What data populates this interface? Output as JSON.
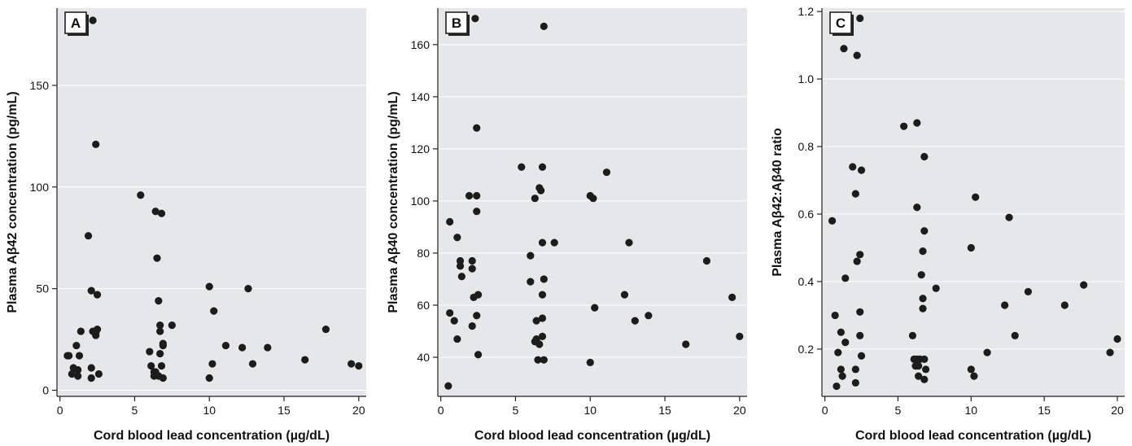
{
  "colors": {
    "background": "#ffffff",
    "plot_background": "#e6e7e8",
    "gridline": "#ffffff",
    "point": "#1c1c1c"
  },
  "chart_data": [
    {
      "type": "scatter",
      "panel_label": "A",
      "xlabel": "Cord blood lead concentration (µg/dL)",
      "ylabel": "Plasma Aβ42 concentration (pg/mL)",
      "xlim": [
        -0.2,
        20.5
      ],
      "ylim": [
        -3,
        188
      ],
      "xticks": [
        0,
        5,
        10,
        15,
        20
      ],
      "yticks": [
        0,
        50,
        100,
        150
      ],
      "grid": true,
      "points": [
        [
          1.2,
          184
        ],
        [
          2.2,
          182
        ],
        [
          2.4,
          121
        ],
        [
          5.4,
          96
        ],
        [
          6.4,
          88
        ],
        [
          6.8,
          87
        ],
        [
          1.9,
          76
        ],
        [
          6.5,
          65
        ],
        [
          10.0,
          51
        ],
        [
          12.6,
          50
        ],
        [
          2.1,
          49
        ],
        [
          2.5,
          47
        ],
        [
          6.6,
          44
        ],
        [
          10.3,
          39
        ],
        [
          7.5,
          32
        ],
        [
          6.7,
          32
        ],
        [
          2.5,
          30
        ],
        [
          2.2,
          29
        ],
        [
          1.4,
          29
        ],
        [
          2.4,
          28
        ],
        [
          6.7,
          29
        ],
        [
          17.8,
          30
        ],
        [
          2.4,
          27
        ],
        [
          6.9,
          23
        ],
        [
          6.9,
          22
        ],
        [
          11.1,
          22
        ],
        [
          1.1,
          22
        ],
        [
          12.2,
          21
        ],
        [
          13.9,
          21
        ],
        [
          6.0,
          19
        ],
        [
          1.3,
          17
        ],
        [
          0.6,
          17
        ],
        [
          0.5,
          17
        ],
        [
          6.7,
          18
        ],
        [
          16.4,
          15
        ],
        [
          12.9,
          13
        ],
        [
          10.2,
          13
        ],
        [
          19.5,
          13
        ],
        [
          20.0,
          12
        ],
        [
          6.1,
          12
        ],
        [
          6.8,
          12
        ],
        [
          2.1,
          11
        ],
        [
          0.9,
          11
        ],
        [
          1.2,
          10
        ],
        [
          6.3,
          9
        ],
        [
          6.4,
          9
        ],
        [
          2.6,
          8
        ],
        [
          0.8,
          8
        ],
        [
          1.2,
          7
        ],
        [
          6.3,
          7
        ],
        [
          6.6,
          7
        ],
        [
          2.1,
          6
        ],
        [
          6.9,
          6
        ],
        [
          10.0,
          6
        ]
      ]
    },
    {
      "type": "scatter",
      "panel_label": "B",
      "xlabel": "Cord blood lead concentration (µg/dL)",
      "ylabel": "Plasma Aβ40 concentration (pg/mL)",
      "xlim": [
        -0.2,
        20.5
      ],
      "ylim": [
        25,
        174
      ],
      "xticks": [
        0,
        5,
        10,
        15,
        20
      ],
      "yticks": [
        40,
        60,
        80,
        100,
        120,
        140,
        160
      ],
      "grid": true,
      "points": [
        [
          2.3,
          170
        ],
        [
          1.2,
          169
        ],
        [
          6.9,
          167
        ],
        [
          2.4,
          128
        ],
        [
          6.8,
          113
        ],
        [
          5.4,
          113
        ],
        [
          11.1,
          111
        ],
        [
          6.6,
          105
        ],
        [
          6.7,
          104
        ],
        [
          2.4,
          102
        ],
        [
          1.9,
          102
        ],
        [
          6.3,
          101
        ],
        [
          10.0,
          102
        ],
        [
          10.2,
          101
        ],
        [
          2.4,
          96
        ],
        [
          0.6,
          92
        ],
        [
          1.1,
          86
        ],
        [
          6.8,
          84
        ],
        [
          7.6,
          84
        ],
        [
          12.6,
          84
        ],
        [
          6.0,
          79
        ],
        [
          1.3,
          77
        ],
        [
          2.1,
          77
        ],
        [
          17.8,
          77
        ],
        [
          1.3,
          75
        ],
        [
          2.1,
          74
        ],
        [
          1.4,
          71
        ],
        [
          6.9,
          70
        ],
        [
          6.0,
          69
        ],
        [
          2.5,
          64
        ],
        [
          6.8,
          64
        ],
        [
          12.3,
          64
        ],
        [
          2.2,
          63
        ],
        [
          19.5,
          63
        ],
        [
          10.3,
          59
        ],
        [
          0.6,
          57
        ],
        [
          2.4,
          56
        ],
        [
          13.9,
          56
        ],
        [
          6.8,
          55
        ],
        [
          6.4,
          54
        ],
        [
          0.9,
          54
        ],
        [
          13.0,
          54
        ],
        [
          2.1,
          52
        ],
        [
          20.0,
          48
        ],
        [
          6.8,
          48
        ],
        [
          1.1,
          47
        ],
        [
          6.4,
          47
        ],
        [
          6.3,
          46
        ],
        [
          16.4,
          45
        ],
        [
          6.6,
          45
        ],
        [
          2.5,
          41
        ],
        [
          6.5,
          39
        ],
        [
          6.9,
          39
        ],
        [
          10.0,
          38
        ],
        [
          0.5,
          29
        ]
      ]
    },
    {
      "type": "scatter",
      "panel_label": "C",
      "xlabel": "Cord blood lead concentration (µg/dL)",
      "ylabel": "Plasma Aβ42:Aβ40 ratio",
      "xlim": [
        -0.2,
        20.5
      ],
      "ylim": [
        0.06,
        1.21
      ],
      "xticks": [
        0,
        5,
        10,
        15,
        20
      ],
      "yticks": [
        0.2,
        0.4,
        0.6,
        0.8,
        1.0,
        1.2
      ],
      "grid": true,
      "points": [
        [
          2.4,
          1.18
        ],
        [
          1.3,
          1.09
        ],
        [
          2.2,
          1.07
        ],
        [
          6.3,
          0.87
        ],
        [
          5.4,
          0.86
        ],
        [
          6.8,
          0.77
        ],
        [
          1.9,
          0.74
        ],
        [
          2.5,
          0.73
        ],
        [
          2.1,
          0.66
        ],
        [
          10.3,
          0.65
        ],
        [
          6.3,
          0.62
        ],
        [
          12.6,
          0.59
        ],
        [
          0.5,
          0.58
        ],
        [
          6.8,
          0.55
        ],
        [
          10.0,
          0.5
        ],
        [
          6.7,
          0.49
        ],
        [
          2.4,
          0.48
        ],
        [
          2.2,
          0.46
        ],
        [
          6.6,
          0.42
        ],
        [
          1.4,
          0.41
        ],
        [
          17.7,
          0.39
        ],
        [
          7.6,
          0.38
        ],
        [
          13.9,
          0.37
        ],
        [
          6.7,
          0.35
        ],
        [
          12.3,
          0.33
        ],
        [
          16.4,
          0.33
        ],
        [
          6.7,
          0.32
        ],
        [
          2.4,
          0.31
        ],
        [
          0.7,
          0.3
        ],
        [
          1.1,
          0.25
        ],
        [
          6.0,
          0.24
        ],
        [
          2.4,
          0.24
        ],
        [
          13.0,
          0.24
        ],
        [
          20.0,
          0.23
        ],
        [
          1.4,
          0.22
        ],
        [
          0.9,
          0.19
        ],
        [
          11.1,
          0.19
        ],
        [
          19.5,
          0.19
        ],
        [
          2.5,
          0.18
        ],
        [
          6.1,
          0.17
        ],
        [
          6.3,
          0.17
        ],
        [
          6.5,
          0.17
        ],
        [
          6.8,
          0.17
        ],
        [
          6.2,
          0.15
        ],
        [
          6.4,
          0.15
        ],
        [
          1.1,
          0.14
        ],
        [
          2.1,
          0.14
        ],
        [
          6.9,
          0.14
        ],
        [
          10.0,
          0.14
        ],
        [
          1.2,
          0.12
        ],
        [
          6.4,
          0.12
        ],
        [
          10.2,
          0.12
        ],
        [
          6.8,
          0.11
        ],
        [
          2.1,
          0.1
        ],
        [
          0.8,
          0.09
        ]
      ]
    }
  ]
}
